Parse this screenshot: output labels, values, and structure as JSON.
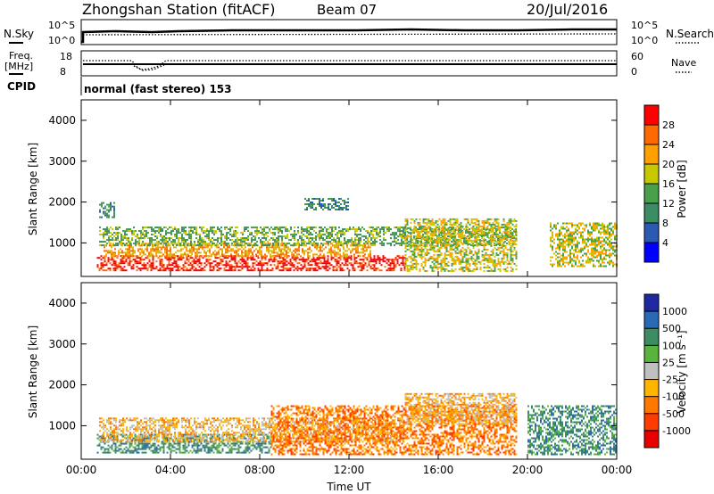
{
  "header": {
    "station": "Zhongshan Station (fitACF)",
    "beam": "Beam 07",
    "date": "20/Jul/2016"
  },
  "top_panel": {
    "left_label": "N.Sky",
    "left_ticks": [
      "10^5",
      "10^0"
    ],
    "right_ticks": [
      "10^5",
      "10^0"
    ],
    "right_label": "N.Search"
  },
  "freq_panel": {
    "left_label_line1": "Freq.",
    "left_label_line2": "[MHz]",
    "left_ticks": [
      "18",
      "8"
    ],
    "right_ticks": [
      "60",
      "0"
    ],
    "right_label": "Nave"
  },
  "cpid": {
    "label": "CPID",
    "text": "normal (fast stereo) 153"
  },
  "power_panel": {
    "ylabel": "Slant Range [km]",
    "yticks": [
      "4000",
      "3000",
      "2000",
      "1000"
    ],
    "colorbar_label": "Power [dB]",
    "colorbar_ticks": [
      "28",
      "24",
      "20",
      "16",
      "12",
      "8",
      "4"
    ],
    "colors": [
      "#0000ff",
      "#2a5ab4",
      "#3c8c64",
      "#4aa04a",
      "#c8c800",
      "#ffa000",
      "#ff6a00",
      "#ff0000"
    ]
  },
  "velocity_panel": {
    "ylabel": "Slant Range [km]",
    "yticks": [
      "4000",
      "3000",
      "2000",
      "1000"
    ],
    "colorbar_label": "Velocity [m s⁻¹]",
    "colorbar_ticks": [
      "1000",
      "500",
      "100",
      "25",
      "-25",
      "-100",
      "-500",
      "-1000"
    ],
    "colors": [
      "#1e28a0",
      "#2a6ab4",
      "#3c8c64",
      "#5ab43c",
      "#c0c0c0",
      "#ffb400",
      "#ff7800",
      "#ff3c00",
      "#e60000"
    ]
  },
  "chart_data": {
    "type": "heatmap",
    "x_axis": {
      "label": "Time UT",
      "ticks": [
        "00:00",
        "04:00",
        "08:00",
        "12:00",
        "16:00",
        "20:00",
        "00:00"
      ],
      "range_hours": [
        0,
        24
      ]
    },
    "y_axis": {
      "label": "Slant Range [km]",
      "range_km": [
        180,
        4500
      ]
    },
    "power_regions": [
      {
        "t0": 0.7,
        "t1": 14.5,
        "r0": 300,
        "r1": 700,
        "value_db": 28
      },
      {
        "t0": 1.0,
        "t1": 13.0,
        "r0": 650,
        "r1": 1000,
        "value_db": 18
      },
      {
        "t0": 0.8,
        "t1": 19.5,
        "r0": 900,
        "r1": 1400,
        "value_db": 10
      },
      {
        "t0": 14.5,
        "t1": 19.5,
        "r0": 300,
        "r1": 1600,
        "value_db": 16
      },
      {
        "t0": 21.0,
        "t1": 24.0,
        "r0": 400,
        "r1": 1500,
        "value_db": 14
      },
      {
        "t0": 0.8,
        "t1": 1.5,
        "r0": 1600,
        "r1": 2000,
        "value_db": 6
      },
      {
        "t0": 10.0,
        "t1": 12.0,
        "r0": 1800,
        "r1": 2100,
        "value_db": 6
      }
    ],
    "velocity_regions": [
      {
        "t0": 0.7,
        "t1": 8.5,
        "r0": 300,
        "r1": 800,
        "value_ms": 100
      },
      {
        "t0": 0.8,
        "t1": 14.5,
        "r0": 600,
        "r1": 1200,
        "value_ms": -100
      },
      {
        "t0": 8.5,
        "t1": 19.5,
        "r0": 300,
        "r1": 1500,
        "value_ms": -500
      },
      {
        "t0": 14.5,
        "t1": 19.5,
        "r0": 1000,
        "r1": 1800,
        "value_ms": -100
      },
      {
        "t0": 20.0,
        "t1": 24.0,
        "r0": 300,
        "r1": 1500,
        "value_ms": 100
      }
    ]
  }
}
